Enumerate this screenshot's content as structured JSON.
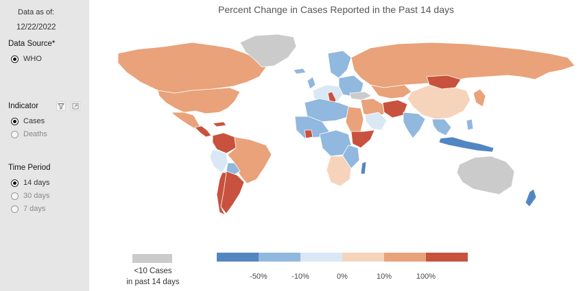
{
  "sidebar": {
    "data_as_of_label": "Data as of:",
    "date": "12/22/2022",
    "data_source_label": "Data Source*",
    "data_source_options": [
      {
        "label": "WHO",
        "selected": true
      }
    ],
    "indicator_label": "Indicator",
    "indicator_options": [
      {
        "label": "Cases",
        "selected": true
      },
      {
        "label": "Deaths",
        "selected": false
      }
    ],
    "time_period_label": "Time Period",
    "time_period_options": [
      {
        "label": "14 days",
        "selected": true
      },
      {
        "label": "30 days",
        "selected": false
      },
      {
        "label": "7 days",
        "selected": false
      }
    ],
    "icons": [
      "filter-icon",
      "expand-icon"
    ]
  },
  "map": {
    "title": "Percent Change in Cases Reported in the Past 14 days",
    "no_data_legend_line1": "<10 Cases",
    "no_data_legend_line2": "in past 14 days",
    "scale_labels": [
      "-50%",
      "-10%",
      "0%",
      "10%",
      "100%"
    ],
    "colors": {
      "no_data": "#cbcbcb",
      "bin_1": "#5286c3",
      "bin_2": "#91b8de",
      "bin_3": "#d9e8f4",
      "bin_4": "#f6d4bc",
      "bin_5": "#e9a27a",
      "bin_6": "#c8523e"
    }
  }
}
